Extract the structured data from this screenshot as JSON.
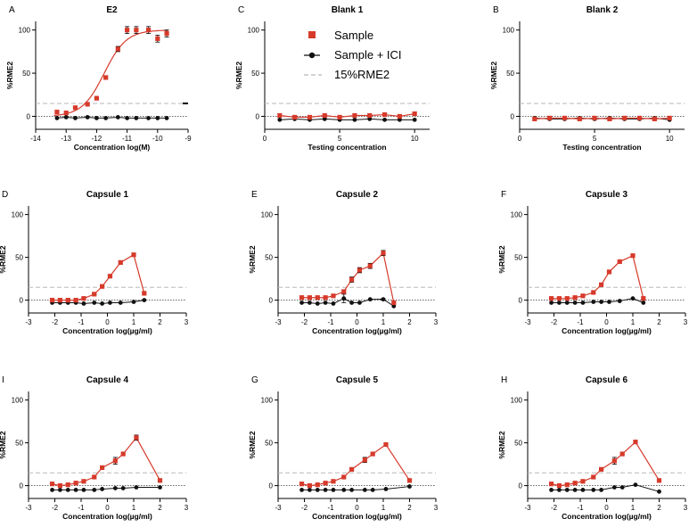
{
  "colors": {
    "sample": "#d63a2b",
    "ici": "#111111",
    "threshold": "#b8b8b8"
  },
  "legend": {
    "sample_label": "Sample",
    "ici_label": "Sample + ICI",
    "threshold_label": "15%RME2"
  },
  "chart_data": [
    {
      "type": "line",
      "letter": "A",
      "title": "E2",
      "xlabel": "Concentration log(M)",
      "ylabel": "%RME2",
      "xlim": [
        -14,
        -9
      ],
      "ylim": [
        -15,
        110
      ],
      "xticks": [
        "-14",
        "-13",
        "-12",
        "-11",
        "-10",
        "-9"
      ],
      "yticks": [
        "0",
        "50",
        "100"
      ],
      "threshold": 15,
      "fit": true,
      "series": [
        {
          "name": "Sample",
          "x": [
            -13.3,
            -13.0,
            -12.7,
            -12.3,
            -12.0,
            -11.7,
            -11.3,
            -11.0,
            -10.7,
            -10.3,
            -10.0,
            -9.7
          ],
          "values": [
            5,
            4,
            10,
            14,
            21,
            45,
            78,
            100,
            100,
            100,
            90,
            96
          ],
          "err": [
            0,
            0,
            0,
            0,
            0,
            2,
            3,
            4,
            4,
            4,
            4,
            4
          ]
        },
        {
          "name": "Sample + ICI",
          "x": [
            -13.3,
            -13.0,
            -12.7,
            -12.3,
            -12.0,
            -11.7,
            -11.3,
            -11.0,
            -10.7,
            -10.3,
            -10.0,
            -9.7
          ],
          "values": [
            -2,
            -1,
            -2,
            -1,
            -2,
            -2,
            -1,
            -2,
            -2,
            -2,
            -2,
            -2
          ]
        }
      ]
    },
    {
      "type": "line",
      "letter": "C",
      "title": "Blank 1",
      "xlabel": "Testing concentration",
      "ylabel": "%RME2",
      "xlim": [
        0,
        11
      ],
      "ylim": [
        -15,
        110
      ],
      "xticks": [
        "0",
        "5",
        "10"
      ],
      "yticks": [
        "0",
        "50",
        "100"
      ],
      "threshold": 15,
      "fit": false,
      "series": [
        {
          "name": "Sample",
          "x": [
            1,
            2,
            3,
            4,
            5,
            6,
            7,
            8,
            9,
            10
          ],
          "values": [
            1,
            -1,
            -1,
            1,
            -1,
            1,
            1,
            2,
            0,
            3
          ]
        },
        {
          "name": "Sample + ICI",
          "x": [
            1,
            2,
            3,
            4,
            5,
            6,
            7,
            8,
            9,
            10
          ],
          "values": [
            -4,
            -3,
            -4,
            -3,
            -4,
            -4,
            -3,
            -4,
            -4,
            -4
          ]
        }
      ]
    },
    {
      "type": "line",
      "letter": "B",
      "title": "Blank 2",
      "xlabel": "Testing concentration",
      "ylabel": "%RME2",
      "xlim": [
        0,
        11
      ],
      "ylim": [
        -15,
        110
      ],
      "xticks": [
        "0",
        "5",
        "10"
      ],
      "yticks": [
        "0",
        "50",
        "100"
      ],
      "threshold": 15,
      "fit": false,
      "series": [
        {
          "name": "Sample",
          "x": [
            1,
            2,
            3,
            4,
            5,
            6,
            7,
            8,
            9,
            10
          ],
          "values": [
            -3,
            -2,
            -2,
            -3,
            -2,
            -3,
            -2,
            -2,
            -3,
            -2
          ]
        },
        {
          "name": "Sample + ICI",
          "x": [
            1,
            2,
            3,
            4,
            5,
            6,
            7,
            8,
            9,
            10
          ],
          "values": [
            -2,
            -3,
            -3,
            -2,
            -3,
            -2,
            -3,
            -3,
            -2,
            -4
          ]
        }
      ]
    },
    {
      "type": "line",
      "letter": "D",
      "title": "Capsule 1",
      "xlabel": "Concentration log(µg/ml)",
      "ylabel": "%RME2",
      "xlim": [
        -3,
        3
      ],
      "ylim": [
        -15,
        110
      ],
      "xticks": [
        "-3",
        "-2",
        "-1",
        "0",
        "1",
        "2",
        "3"
      ],
      "yticks": [
        "0",
        "50",
        "100"
      ],
      "threshold": 15,
      "fit": false,
      "series": [
        {
          "name": "Sample",
          "x": [
            -2.1,
            -1.8,
            -1.5,
            -1.2,
            -0.9,
            -0.5,
            -0.2,
            0.1,
            0.5,
            1.0,
            1.4
          ],
          "values": [
            0,
            0,
            0,
            0,
            2,
            7,
            16,
            28,
            44,
            53,
            8
          ],
          "err": [
            2,
            2,
            1,
            1,
            1,
            1,
            1,
            1,
            2,
            1,
            0
          ]
        },
        {
          "name": "Sample + ICI",
          "x": [
            -2.1,
            -1.8,
            -1.5,
            -1.2,
            -0.9,
            -0.5,
            -0.2,
            0.1,
            0.5,
            1.0,
            1.4
          ],
          "values": [
            -3,
            -3,
            -3,
            -3,
            -4,
            -3,
            -4,
            -3,
            -3,
            -2,
            0
          ]
        }
      ]
    },
    {
      "type": "line",
      "letter": "E",
      "title": "Capsule 2",
      "xlabel": "Concentration log(µg/ml)",
      "ylabel": "%RME2",
      "xlim": [
        -3,
        3
      ],
      "ylim": [
        -15,
        110
      ],
      "xticks": [
        "-3",
        "-2",
        "-1",
        "0",
        "1",
        "2",
        "3"
      ],
      "yticks": [
        "0",
        "50",
        "100"
      ],
      "threshold": 15,
      "fit": false,
      "series": [
        {
          "name": "Sample",
          "x": [
            -2.1,
            -1.8,
            -1.5,
            -1.2,
            -0.9,
            -0.5,
            -0.2,
            0.1,
            0.5,
            1.0,
            1.4
          ],
          "values": [
            3,
            3,
            3,
            3,
            5,
            10,
            24,
            35,
            40,
            55,
            -3
          ],
          "err": [
            0,
            0,
            0,
            0,
            0,
            2,
            3,
            3,
            3,
            3,
            0
          ]
        },
        {
          "name": "Sample + ICI",
          "x": [
            -2.1,
            -1.8,
            -1.5,
            -1.2,
            -0.9,
            -0.5,
            -0.2,
            0.1,
            0.5,
            1.0,
            1.4
          ],
          "values": [
            -3,
            -3,
            -4,
            -3,
            -4,
            2,
            -3,
            -3,
            1,
            1,
            -7
          ],
          "err": [
            0,
            0,
            0,
            0,
            0,
            5,
            0,
            0,
            0,
            1,
            0
          ]
        }
      ]
    },
    {
      "type": "line",
      "letter": "F",
      "title": "Capsule 3",
      "xlabel": "Concentration log(µg/ml)",
      "ylabel": "%RME2",
      "xlim": [
        -3,
        3
      ],
      "ylim": [
        -15,
        110
      ],
      "xticks": [
        "-3",
        "-2",
        "-1",
        "0",
        "1",
        "2",
        "3"
      ],
      "yticks": [
        "0",
        "50",
        "100"
      ],
      "threshold": 15,
      "fit": false,
      "series": [
        {
          "name": "Sample",
          "x": [
            -2.1,
            -1.8,
            -1.5,
            -1.2,
            -0.9,
            -0.5,
            -0.2,
            0.1,
            0.5,
            1.0,
            1.4
          ],
          "values": [
            2,
            2,
            2,
            3,
            5,
            9,
            18,
            33,
            45,
            52,
            2
          ],
          "err": [
            0,
            0,
            0,
            0,
            0,
            0,
            0,
            0,
            0,
            1,
            0
          ]
        },
        {
          "name": "Sample + ICI",
          "x": [
            -2.1,
            -1.8,
            -1.5,
            -1.2,
            -0.9,
            -0.5,
            -0.2,
            0.1,
            0.5,
            1.0,
            1.4
          ],
          "values": [
            -3,
            -3,
            -3,
            -3,
            -3,
            -2,
            -2,
            -2,
            -1,
            2,
            -3
          ]
        }
      ]
    },
    {
      "type": "line",
      "letter": "I",
      "title": "Capsule 4",
      "xlabel": "Concentration log(µg/ml)",
      "ylabel": "%RME2",
      "xlim": [
        -3,
        3
      ],
      "ylim": [
        -15,
        110
      ],
      "xticks": [
        "-3",
        "-2",
        "-1",
        "0",
        "1",
        "2",
        "3"
      ],
      "yticks": [
        "0",
        "50",
        "100"
      ],
      "threshold": 15,
      "fit": false,
      "series": [
        {
          "name": "Sample",
          "x": [
            -2.1,
            -1.8,
            -1.5,
            -1.2,
            -0.9,
            -0.5,
            -0.2,
            0.3,
            0.6,
            1.1,
            2.0
          ],
          "values": [
            2,
            0,
            1,
            3,
            5,
            10,
            21,
            29,
            37,
            56,
            6
          ],
          "err": [
            0,
            0,
            0,
            0,
            0,
            0,
            0,
            4,
            0,
            3,
            0
          ]
        },
        {
          "name": "Sample + ICI",
          "x": [
            -2.1,
            -1.8,
            -1.5,
            -1.2,
            -0.9,
            -0.5,
            -0.2,
            0.3,
            0.6,
            1.1,
            2.0
          ],
          "values": [
            -5,
            -5,
            -5,
            -5,
            -5,
            -5,
            -4,
            -3,
            -3,
            -2,
            -2
          ]
        }
      ]
    },
    {
      "type": "line",
      "letter": "G",
      "title": "Capsule 5",
      "xlabel": "Concentration log(µg/ml)",
      "ylabel": "%RME2",
      "xlim": [
        -3,
        3
      ],
      "ylim": [
        -15,
        110
      ],
      "xticks": [
        "-3",
        "-2",
        "-1",
        "0",
        "1",
        "2",
        "3"
      ],
      "yticks": [
        "0",
        "50",
        "100"
      ],
      "threshold": 15,
      "fit": false,
      "series": [
        {
          "name": "Sample",
          "x": [
            -2.1,
            -1.8,
            -1.5,
            -1.2,
            -0.9,
            -0.5,
            -0.2,
            0.3,
            0.6,
            1.1,
            2.0
          ],
          "values": [
            2,
            0,
            1,
            3,
            5,
            10,
            19,
            30,
            37,
            48,
            6
          ],
          "err": [
            0,
            0,
            0,
            0,
            0,
            0,
            0,
            3,
            0,
            1,
            0
          ]
        },
        {
          "name": "Sample + ICI",
          "x": [
            -2.1,
            -1.8,
            -1.5,
            -1.2,
            -0.9,
            -0.5,
            -0.2,
            0.3,
            0.6,
            1.1,
            2.0
          ],
          "values": [
            -5,
            -5,
            -5,
            -5,
            -5,
            -5,
            -5,
            -5,
            -5,
            -4,
            -1
          ]
        }
      ]
    },
    {
      "type": "line",
      "letter": "H",
      "title": "Capsule 6",
      "xlabel": "Concentration log(µg/ml)",
      "ylabel": "%RME2",
      "xlim": [
        -3,
        3
      ],
      "ylim": [
        -15,
        110
      ],
      "xticks": [
        "-3",
        "-2",
        "-1",
        "0",
        "1",
        "2",
        "3"
      ],
      "yticks": [
        "0",
        "50",
        "100"
      ],
      "threshold": 15,
      "fit": false,
      "series": [
        {
          "name": "Sample",
          "x": [
            -2.1,
            -1.8,
            -1.5,
            -1.2,
            -0.9,
            -0.5,
            -0.2,
            0.3,
            0.6,
            1.1,
            2.0
          ],
          "values": [
            2,
            0,
            1,
            3,
            5,
            10,
            19,
            29,
            37,
            51,
            6
          ],
          "err": [
            0,
            0,
            0,
            0,
            0,
            0,
            0,
            4,
            0,
            1,
            0
          ]
        },
        {
          "name": "Sample + ICI",
          "x": [
            -2.1,
            -1.8,
            -1.5,
            -1.2,
            -0.9,
            -0.5,
            -0.2,
            0.3,
            0.6,
            1.1,
            2.0
          ],
          "values": [
            -5,
            -5,
            -5,
            -5,
            -5,
            -5,
            -5,
            -2,
            -2,
            1,
            -7
          ]
        }
      ]
    }
  ]
}
